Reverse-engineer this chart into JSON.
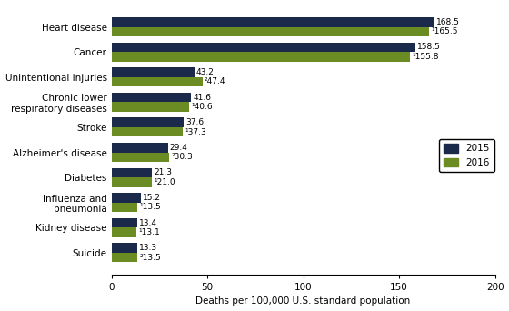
{
  "categories": [
    "Heart disease",
    "Cancer",
    "Unintentional injuries",
    "Chronic lower\nrespiratory diseases",
    "Stroke",
    "Alzheimer's disease",
    "Diabetes",
    "Influenza and\npneumonia",
    "Kidney disease",
    "Suicide"
  ],
  "values_2015": [
    168.5,
    158.5,
    43.2,
    41.6,
    37.6,
    29.4,
    21.3,
    15.2,
    13.4,
    13.3
  ],
  "values_2016": [
    165.5,
    155.8,
    47.4,
    40.6,
    37.3,
    30.3,
    21.0,
    13.5,
    13.1,
    13.5
  ],
  "labels_2015": [
    "168.5",
    "158.5",
    "43.2",
    "41.6",
    "37.6",
    "29.4",
    "21.3",
    "15.2",
    "13.4",
    "13.3"
  ],
  "labels_2016": [
    "¹165.5",
    "¹155.8",
    "²47.4",
    "¹40.6",
    "¹37.3",
    "²30.3",
    "¹21.0",
    "¹13.5",
    "¹13.1",
    "²13.5"
  ],
  "color_2015": "#1b2a4a",
  "color_2016": "#6b8c22",
  "xlabel": "Deaths per 100,000 U.S. standard population",
  "xlim": [
    0,
    200
  ],
  "xticks": [
    0,
    50,
    100,
    150,
    200
  ],
  "legend_2015": "2015",
  "legend_2016": "2016",
  "bar_height": 0.38,
  "label_fontsize": 6.5,
  "tick_fontsize": 7.5,
  "xlabel_fontsize": 7.5
}
